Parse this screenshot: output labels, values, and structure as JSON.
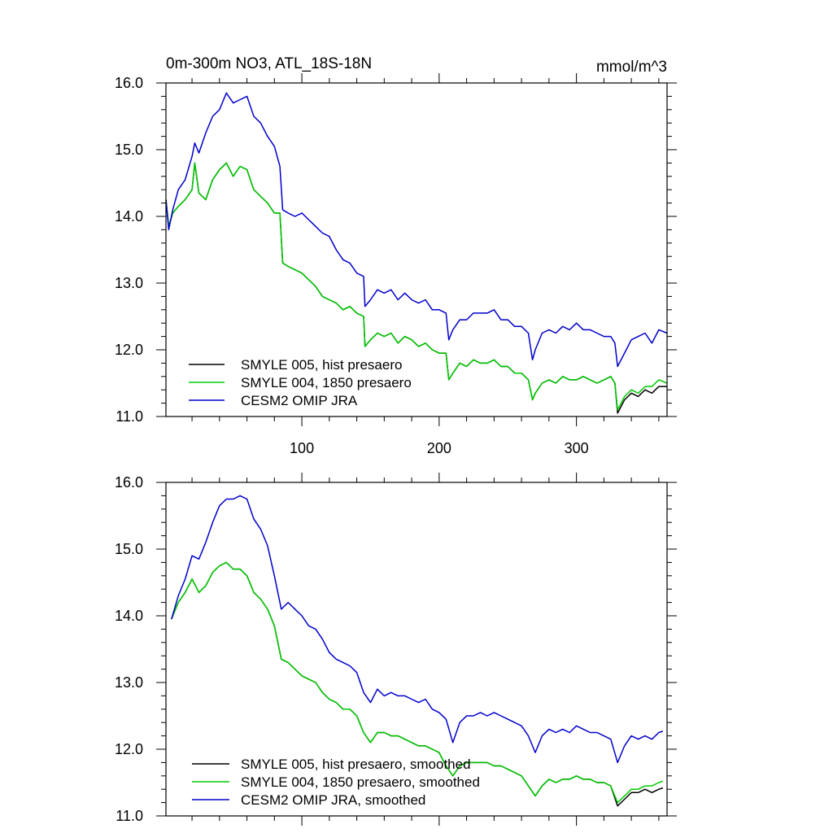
{
  "chart_data": [
    {
      "type": "line",
      "title": "0m-300m NO3, ATL_18S-18N",
      "units": "mmol/m^3",
      "xlim": [
        1,
        366
      ],
      "ylim": [
        11.0,
        16.0
      ],
      "x_ticks": [
        100,
        200,
        300
      ],
      "x_tick_labels": [
        "100",
        "200",
        "300"
      ],
      "y_ticks": [
        11.0,
        12.0,
        13.0,
        14.0,
        15.0,
        16.0
      ],
      "y_tick_labels": [
        "11.0",
        "12.0",
        "13.0",
        "14.0",
        "15.0",
        "16.0"
      ],
      "grid": false,
      "legend_position": "bottom-left",
      "series": [
        {
          "name": "SMYLE 005, hist presaero",
          "color": "#000000",
          "x": [
            1,
            3,
            6,
            10,
            15,
            20,
            22,
            25,
            30,
            35,
            40,
            45,
            50,
            55,
            60,
            65,
            70,
            75,
            80,
            84,
            86,
            90,
            95,
            100,
            105,
            110,
            115,
            120,
            125,
            130,
            135,
            140,
            145,
            146,
            150,
            155,
            160,
            165,
            170,
            175,
            180,
            185,
            190,
            195,
            200,
            205,
            207,
            210,
            215,
            220,
            225,
            230,
            235,
            240,
            245,
            250,
            255,
            260,
            265,
            268,
            270,
            275,
            280,
            285,
            290,
            295,
            300,
            305,
            310,
            315,
            320,
            325,
            328,
            330,
            335,
            340,
            345,
            350,
            355,
            360,
            366
          ],
          "y": [
            14.25,
            13.85,
            14.05,
            14.15,
            14.25,
            14.4,
            14.8,
            14.35,
            14.25,
            14.55,
            14.7,
            14.8,
            14.6,
            14.75,
            14.7,
            14.4,
            14.3,
            14.2,
            14.05,
            14.05,
            13.3,
            13.25,
            13.2,
            13.15,
            13.05,
            12.95,
            12.8,
            12.75,
            12.7,
            12.6,
            12.65,
            12.55,
            12.5,
            12.05,
            12.15,
            12.25,
            12.2,
            12.25,
            12.1,
            12.2,
            12.15,
            12.05,
            12.1,
            12.0,
            11.95,
            11.95,
            11.55,
            11.65,
            11.8,
            11.75,
            11.85,
            11.8,
            11.8,
            11.85,
            11.75,
            11.75,
            11.65,
            11.65,
            11.55,
            11.25,
            11.35,
            11.5,
            11.55,
            11.5,
            11.6,
            11.55,
            11.55,
            11.6,
            11.55,
            11.5,
            11.55,
            11.6,
            11.5,
            11.05,
            11.25,
            11.35,
            11.3,
            11.4,
            11.35,
            11.45,
            11.45
          ]
        },
        {
          "name": "SMYLE 004, 1850 presaero",
          "color": "#00cc00",
          "x": [
            1,
            3,
            6,
            10,
            15,
            20,
            22,
            25,
            30,
            35,
            40,
            45,
            50,
            55,
            60,
            65,
            70,
            75,
            80,
            84,
            86,
            90,
            95,
            100,
            105,
            110,
            115,
            120,
            125,
            130,
            135,
            140,
            145,
            146,
            150,
            155,
            160,
            165,
            170,
            175,
            180,
            185,
            190,
            195,
            200,
            205,
            207,
            210,
            215,
            220,
            225,
            230,
            235,
            240,
            245,
            250,
            255,
            260,
            265,
            268,
            270,
            275,
            280,
            285,
            290,
            295,
            300,
            305,
            310,
            315,
            320,
            325,
            328,
            330,
            335,
            340,
            345,
            350,
            355,
            360,
            366
          ],
          "y": [
            14.25,
            13.85,
            14.05,
            14.15,
            14.25,
            14.4,
            14.8,
            14.35,
            14.25,
            14.55,
            14.7,
            14.8,
            14.6,
            14.75,
            14.7,
            14.4,
            14.3,
            14.2,
            14.05,
            14.05,
            13.3,
            13.25,
            13.2,
            13.15,
            13.05,
            12.95,
            12.8,
            12.75,
            12.7,
            12.6,
            12.65,
            12.55,
            12.5,
            12.05,
            12.15,
            12.25,
            12.2,
            12.25,
            12.1,
            12.2,
            12.15,
            12.05,
            12.1,
            12.0,
            11.95,
            11.95,
            11.55,
            11.65,
            11.8,
            11.75,
            11.85,
            11.8,
            11.8,
            11.85,
            11.75,
            11.75,
            11.65,
            11.65,
            11.55,
            11.25,
            11.35,
            11.5,
            11.55,
            11.5,
            11.6,
            11.55,
            11.55,
            11.6,
            11.55,
            11.5,
            11.55,
            11.6,
            11.5,
            11.1,
            11.3,
            11.4,
            11.35,
            11.45,
            11.45,
            11.55,
            11.5
          ]
        },
        {
          "name": "CESM2 OMIP JRA",
          "color": "#0000cc",
          "x": [
            1,
            3,
            6,
            10,
            15,
            20,
            22,
            25,
            30,
            35,
            40,
            45,
            50,
            55,
            60,
            65,
            70,
            75,
            80,
            84,
            86,
            90,
            95,
            100,
            105,
            110,
            115,
            120,
            125,
            130,
            135,
            140,
            145,
            146,
            150,
            155,
            160,
            165,
            170,
            175,
            180,
            185,
            190,
            195,
            200,
            205,
            207,
            210,
            215,
            220,
            225,
            230,
            235,
            240,
            245,
            250,
            255,
            260,
            265,
            268,
            270,
            275,
            280,
            285,
            290,
            295,
            300,
            305,
            310,
            315,
            320,
            325,
            328,
            330,
            335,
            340,
            345,
            350,
            355,
            360,
            366
          ],
          "y": [
            14.25,
            13.8,
            14.1,
            14.4,
            14.55,
            14.9,
            15.1,
            14.95,
            15.25,
            15.5,
            15.6,
            15.85,
            15.7,
            15.75,
            15.8,
            15.5,
            15.4,
            15.2,
            15.05,
            14.75,
            14.1,
            14.05,
            14.0,
            14.05,
            13.95,
            13.85,
            13.75,
            13.7,
            13.5,
            13.35,
            13.3,
            13.15,
            13.1,
            12.65,
            12.75,
            12.9,
            12.85,
            12.9,
            12.75,
            12.85,
            12.75,
            12.7,
            12.75,
            12.6,
            12.6,
            12.55,
            12.15,
            12.3,
            12.45,
            12.45,
            12.55,
            12.55,
            12.55,
            12.6,
            12.45,
            12.45,
            12.35,
            12.35,
            12.25,
            11.85,
            12.0,
            12.25,
            12.3,
            12.25,
            12.35,
            12.3,
            12.4,
            12.3,
            12.3,
            12.25,
            12.2,
            12.2,
            12.1,
            11.75,
            11.95,
            12.15,
            12.2,
            12.25,
            12.1,
            12.3,
            12.25
          ]
        }
      ]
    },
    {
      "type": "line",
      "title": "",
      "xlim": [
        1,
        366
      ],
      "ylim": [
        11.0,
        16.0
      ],
      "x_ticks": [
        100,
        200,
        300
      ],
      "x_tick_labels": [
        "",
        "",
        ""
      ],
      "y_ticks": [
        11.0,
        12.0,
        13.0,
        14.0,
        15.0,
        16.0
      ],
      "y_tick_labels": [
        "11.0",
        "12.0",
        "13.0",
        "14.0",
        "15.0",
        "16.0"
      ],
      "grid": false,
      "legend_position": "bottom-left",
      "series": [
        {
          "name": "SMYLE 005, hist presaero, smoothed",
          "color": "#000000",
          "x": [
            5,
            10,
            15,
            20,
            25,
            30,
            35,
            40,
            45,
            50,
            55,
            60,
            65,
            70,
            75,
            80,
            85,
            90,
            95,
            100,
            105,
            110,
            115,
            120,
            125,
            130,
            135,
            140,
            145,
            150,
            155,
            160,
            165,
            170,
            175,
            180,
            185,
            190,
            195,
            200,
            205,
            210,
            215,
            220,
            225,
            230,
            235,
            240,
            245,
            250,
            255,
            260,
            265,
            270,
            275,
            280,
            285,
            290,
            295,
            300,
            305,
            310,
            315,
            320,
            325,
            330,
            335,
            340,
            345,
            350,
            355,
            360,
            363
          ],
          "y": [
            13.95,
            14.2,
            14.35,
            14.55,
            14.35,
            14.45,
            14.65,
            14.75,
            14.8,
            14.7,
            14.7,
            14.6,
            14.35,
            14.25,
            14.1,
            13.85,
            13.35,
            13.3,
            13.2,
            13.1,
            13.05,
            13.0,
            12.85,
            12.75,
            12.7,
            12.6,
            12.6,
            12.5,
            12.25,
            12.1,
            12.25,
            12.25,
            12.2,
            12.2,
            12.15,
            12.1,
            12.05,
            12.05,
            12.0,
            11.95,
            11.75,
            11.6,
            11.75,
            11.8,
            11.8,
            11.8,
            11.8,
            11.75,
            11.75,
            11.7,
            11.65,
            11.6,
            11.45,
            11.3,
            11.45,
            11.55,
            11.5,
            11.55,
            11.55,
            11.6,
            11.55,
            11.55,
            11.5,
            11.5,
            11.45,
            11.15,
            11.25,
            11.35,
            11.35,
            11.4,
            11.35,
            11.4,
            11.42
          ]
        },
        {
          "name": "SMYLE 004, 1850 presaero, smoothed",
          "color": "#00cc00",
          "x": [
            5,
            10,
            15,
            20,
            25,
            30,
            35,
            40,
            45,
            50,
            55,
            60,
            65,
            70,
            75,
            80,
            85,
            90,
            95,
            100,
            105,
            110,
            115,
            120,
            125,
            130,
            135,
            140,
            145,
            150,
            155,
            160,
            165,
            170,
            175,
            180,
            185,
            190,
            195,
            200,
            205,
            210,
            215,
            220,
            225,
            230,
            235,
            240,
            245,
            250,
            255,
            260,
            265,
            270,
            275,
            280,
            285,
            290,
            295,
            300,
            305,
            310,
            315,
            320,
            325,
            330,
            335,
            340,
            345,
            350,
            355,
            360,
            363
          ],
          "y": [
            13.95,
            14.2,
            14.35,
            14.55,
            14.35,
            14.45,
            14.65,
            14.75,
            14.8,
            14.7,
            14.7,
            14.6,
            14.35,
            14.25,
            14.1,
            13.85,
            13.35,
            13.3,
            13.2,
            13.1,
            13.05,
            13.0,
            12.85,
            12.75,
            12.7,
            12.6,
            12.6,
            12.5,
            12.25,
            12.1,
            12.25,
            12.25,
            12.2,
            12.2,
            12.15,
            12.1,
            12.05,
            12.05,
            12.0,
            11.95,
            11.75,
            11.6,
            11.75,
            11.8,
            11.8,
            11.8,
            11.8,
            11.75,
            11.75,
            11.7,
            11.65,
            11.6,
            11.45,
            11.3,
            11.45,
            11.55,
            11.5,
            11.55,
            11.55,
            11.6,
            11.55,
            11.55,
            11.5,
            11.5,
            11.45,
            11.2,
            11.3,
            11.4,
            11.4,
            11.45,
            11.45,
            11.5,
            11.52
          ]
        },
        {
          "name": "CESM2 OMIP JRA, smoothed",
          "color": "#0000cc",
          "x": [
            5,
            10,
            15,
            20,
            25,
            30,
            35,
            40,
            45,
            50,
            55,
            60,
            65,
            70,
            75,
            80,
            85,
            90,
            95,
            100,
            105,
            110,
            115,
            120,
            125,
            130,
            135,
            140,
            145,
            150,
            155,
            160,
            165,
            170,
            175,
            180,
            185,
            190,
            195,
            200,
            205,
            210,
            215,
            220,
            225,
            230,
            235,
            240,
            245,
            250,
            255,
            260,
            265,
            270,
            275,
            280,
            285,
            290,
            295,
            300,
            305,
            310,
            315,
            320,
            325,
            330,
            335,
            340,
            345,
            350,
            355,
            360,
            363
          ],
          "y": [
            13.95,
            14.3,
            14.55,
            14.9,
            14.85,
            15.1,
            15.4,
            15.65,
            15.75,
            15.75,
            15.8,
            15.75,
            15.45,
            15.3,
            15.05,
            14.6,
            14.1,
            14.2,
            14.1,
            14.0,
            13.85,
            13.8,
            13.65,
            13.45,
            13.35,
            13.3,
            13.25,
            13.15,
            12.85,
            12.7,
            12.9,
            12.8,
            12.85,
            12.8,
            12.8,
            12.75,
            12.7,
            12.75,
            12.6,
            12.55,
            12.45,
            12.1,
            12.4,
            12.5,
            12.5,
            12.55,
            12.5,
            12.55,
            12.5,
            12.45,
            12.4,
            12.35,
            12.2,
            11.95,
            12.2,
            12.3,
            12.25,
            12.3,
            12.25,
            12.35,
            12.3,
            12.25,
            12.25,
            12.2,
            12.15,
            11.8,
            12.05,
            12.2,
            12.15,
            12.2,
            12.15,
            12.25,
            12.27
          ]
        }
      ]
    }
  ]
}
